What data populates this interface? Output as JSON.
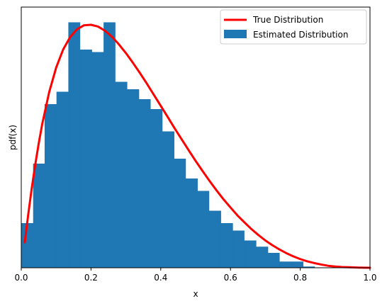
{
  "chart_data": {
    "type": "bar",
    "x_label": "x",
    "y_label": "pdf(x)",
    "x_ticks": [
      "0.0",
      "0.2",
      "0.4",
      "0.6",
      "0.8",
      "1.0"
    ],
    "xlim": [
      0,
      1
    ],
    "ylim": [
      0,
      1
    ],
    "y_tick_labels_visible": false,
    "grid": false,
    "legend": {
      "position": "top-right",
      "entries": [
        {
          "label": "True Distribution",
          "kind": "line",
          "color": "#ff0000"
        },
        {
          "label": "Estimated Distribution",
          "kind": "patch",
          "color": "#1f77b4"
        }
      ]
    },
    "histogram": {
      "name": "Estimated Distribution",
      "color": "#1f77b4",
      "bin_edges": [
        0.0,
        0.034,
        0.067,
        0.101,
        0.135,
        0.168,
        0.202,
        0.236,
        0.269,
        0.303,
        0.337,
        0.37,
        0.404,
        0.438,
        0.471,
        0.505,
        0.538,
        0.572,
        0.606,
        0.639,
        0.673,
        0.707,
        0.74,
        0.774,
        0.808,
        0.841
      ],
      "heights": [
        0.18,
        0.42,
        0.66,
        0.71,
        0.99,
        0.88,
        0.87,
        0.99,
        0.75,
        0.72,
        0.68,
        0.64,
        0.55,
        0.44,
        0.36,
        0.31,
        0.23,
        0.18,
        0.15,
        0.11,
        0.085,
        0.06,
        0.025,
        0.025,
        0.005
      ]
    },
    "true_distribution": {
      "name": "True Distribution",
      "color": "#ff0000",
      "x": [
        0.01,
        0.02,
        0.03,
        0.04,
        0.05,
        0.06,
        0.08,
        0.1,
        0.12,
        0.14,
        0.16,
        0.18,
        0.2,
        0.22,
        0.24,
        0.26,
        0.28,
        0.3,
        0.32,
        0.34,
        0.36,
        0.38,
        0.4,
        0.42,
        0.44,
        0.46,
        0.48,
        0.5,
        0.52,
        0.54,
        0.56,
        0.58,
        0.6,
        0.62,
        0.64,
        0.66,
        0.68,
        0.7,
        0.72,
        0.74,
        0.76,
        0.78,
        0.8,
        0.82,
        0.84,
        0.86,
        0.88,
        0.9,
        0.92,
        0.94,
        0.96,
        0.98,
        1.0
      ],
      "y": [
        0.102,
        0.215,
        0.32,
        0.415,
        0.501,
        0.579,
        0.708,
        0.807,
        0.88,
        0.93,
        0.962,
        0.978,
        0.98,
        0.973,
        0.956,
        0.932,
        0.901,
        0.866,
        0.827,
        0.786,
        0.743,
        0.698,
        0.653,
        0.608,
        0.562,
        0.518,
        0.474,
        0.431,
        0.39,
        0.35,
        0.312,
        0.276,
        0.243,
        0.211,
        0.183,
        0.156,
        0.132,
        0.11,
        0.091,
        0.074,
        0.059,
        0.046,
        0.035,
        0.026,
        0.019,
        0.013,
        0.008,
        0.005,
        0.003,
        0.002,
        0.001,
        0.0003,
        0.0
      ]
    }
  }
}
